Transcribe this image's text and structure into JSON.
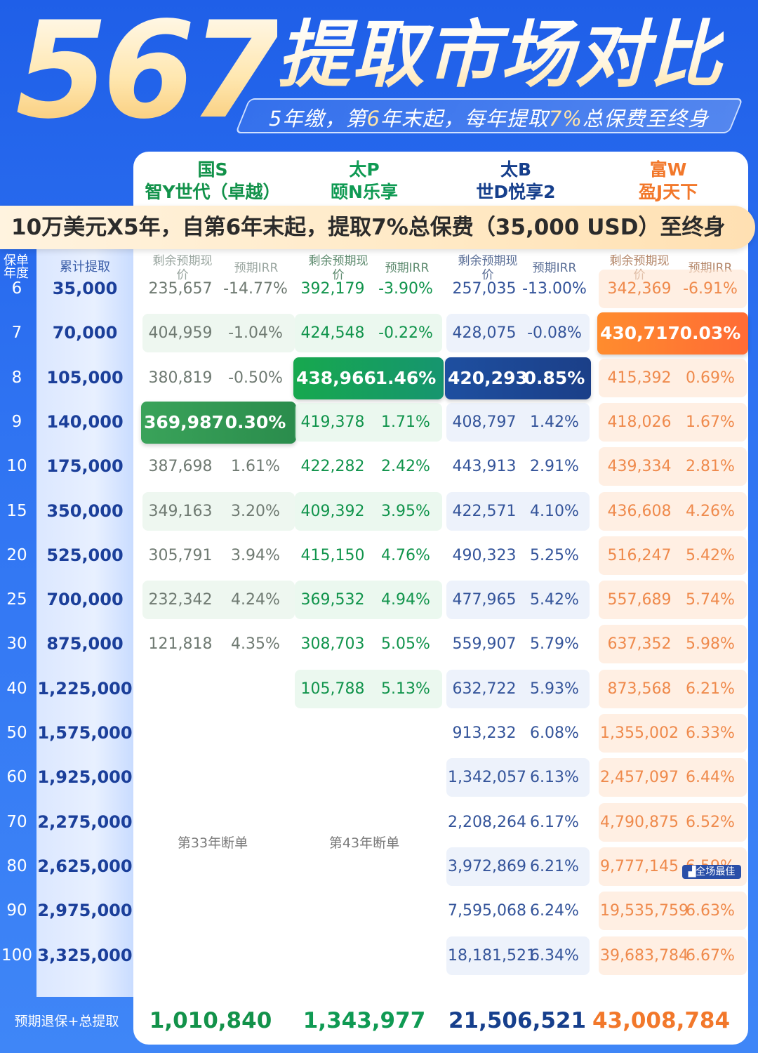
{
  "header": {
    "big_number": "567",
    "title": "提取市场对比",
    "subtitle_parts": [
      "5年缴，第",
      "6",
      "年末起，每年提取",
      "7%",
      "总保费至终身"
    ]
  },
  "banner": "10万美元X5年，自第6年末起，提取7%总保费（35,000 USD）至终身",
  "columns": [
    {
      "company": "国S",
      "product": "智Y世代（卓越）"
    },
    {
      "company": "太P",
      "product": "颐N乐享"
    },
    {
      "company": "太B",
      "product": "世D悦享2"
    },
    {
      "company": "富W",
      "product": "盈J天下"
    }
  ],
  "subheaders": {
    "policy_year": "保单年度",
    "cumulative": "累计提取",
    "cash_value": "剩余预期现价",
    "irr": "预期IRR"
  },
  "rows": [
    {
      "year": "6",
      "cum": "35,000",
      "v": [
        [
          "235,657",
          "-14.77%"
        ],
        [
          "392,179",
          "-3.90%"
        ],
        [
          "257,035",
          "-13.00%"
        ],
        [
          "342,369",
          "-6.91%"
        ]
      ]
    },
    {
      "year": "7",
      "cum": "70,000",
      "v": [
        [
          "404,959",
          "-1.04%"
        ],
        [
          "424,548",
          "-0.22%"
        ],
        [
          "428,075",
          "-0.08%"
        ],
        [
          "430,717",
          "0.03%"
        ]
      ]
    },
    {
      "year": "8",
      "cum": "105,000",
      "v": [
        [
          "380,819",
          "-0.50%"
        ],
        [
          "438,966",
          "1.46%"
        ],
        [
          "420,293",
          "0.85%"
        ],
        [
          "415,392",
          "0.69%"
        ]
      ]
    },
    {
      "year": "9",
      "cum": "140,000",
      "v": [
        [
          "369,987",
          "0.30%"
        ],
        [
          "419,378",
          "1.71%"
        ],
        [
          "408,797",
          "1.42%"
        ],
        [
          "418,026",
          "1.67%"
        ]
      ]
    },
    {
      "year": "10",
      "cum": "175,000",
      "v": [
        [
          "387,698",
          "1.61%"
        ],
        [
          "422,282",
          "2.42%"
        ],
        [
          "443,913",
          "2.91%"
        ],
        [
          "439,334",
          "2.81%"
        ]
      ]
    },
    {
      "year": "15",
      "cum": "350,000",
      "v": [
        [
          "349,163",
          "3.20%"
        ],
        [
          "409,392",
          "3.95%"
        ],
        [
          "422,571",
          "4.10%"
        ],
        [
          "436,608",
          "4.26%"
        ]
      ]
    },
    {
      "year": "20",
      "cum": "525,000",
      "v": [
        [
          "305,791",
          "3.94%"
        ],
        [
          "415,150",
          "4.76%"
        ],
        [
          "490,323",
          "5.25%"
        ],
        [
          "516,247",
          "5.42%"
        ]
      ]
    },
    {
      "year": "25",
      "cum": "700,000",
      "v": [
        [
          "232,342",
          "4.24%"
        ],
        [
          "369,532",
          "4.94%"
        ],
        [
          "477,965",
          "5.42%"
        ],
        [
          "557,689",
          "5.74%"
        ]
      ]
    },
    {
      "year": "30",
      "cum": "875,000",
      "v": [
        [
          "121,818",
          "4.35%"
        ],
        [
          "308,703",
          "5.05%"
        ],
        [
          "559,907",
          "5.79%"
        ],
        [
          "637,352",
          "5.98%"
        ]
      ]
    },
    {
      "year": "40",
      "cum": "1,225,000",
      "v": [
        [
          "",
          ""
        ],
        [
          "105,788",
          "5.13%"
        ],
        [
          "632,722",
          "5.93%"
        ],
        [
          "873,568",
          "6.21%"
        ]
      ]
    },
    {
      "year": "50",
      "cum": "1,575,000",
      "v": [
        [
          "",
          ""
        ],
        [
          "",
          ""
        ],
        [
          "913,232",
          "6.08%"
        ],
        [
          "1,355,002",
          "6.33%"
        ]
      ]
    },
    {
      "year": "60",
      "cum": "1,925,000",
      "v": [
        [
          "",
          ""
        ],
        [
          "",
          ""
        ],
        [
          "1,342,057",
          "6.13%"
        ],
        [
          "2,457,097",
          "6.44%"
        ]
      ]
    },
    {
      "year": "70",
      "cum": "2,275,000",
      "v": [
        [
          "",
          ""
        ],
        [
          "",
          ""
        ],
        [
          "2,208,264",
          "6.17%"
        ],
        [
          "4,790,875",
          "6.52%"
        ]
      ]
    },
    {
      "year": "80",
      "cum": "2,625,000",
      "v": [
        [
          "",
          ""
        ],
        [
          "",
          ""
        ],
        [
          "3,972,869",
          "6.21%"
        ],
        [
          "9,777,145",
          "6.59%"
        ]
      ]
    },
    {
      "year": "90",
      "cum": "2,975,000",
      "v": [
        [
          "",
          ""
        ],
        [
          "",
          ""
        ],
        [
          "7,595,068",
          "6.24%"
        ],
        [
          "19,535,759",
          "6.63%"
        ]
      ]
    },
    {
      "year": "100",
      "cum": "3,325,000",
      "v": [
        [
          "",
          ""
        ],
        [
          "",
          ""
        ],
        [
          "18,181,521",
          "6.34%"
        ],
        [
          "39,683,784",
          "6.67%"
        ]
      ]
    }
  ],
  "lapse_notes": [
    "第33年断单",
    "第43年断单"
  ],
  "best_badge": "全场最佳",
  "footer": {
    "label": "预期退保+总提取",
    "totals": [
      "1,010,840",
      "1,343,977",
      "21,506,521",
      "43,008,784"
    ]
  },
  "colors": {
    "background": "#2f73f2",
    "col1": "#12924a",
    "col2": "#0f9a53",
    "col3": "#163f8c",
    "col4": "#f2782b"
  }
}
